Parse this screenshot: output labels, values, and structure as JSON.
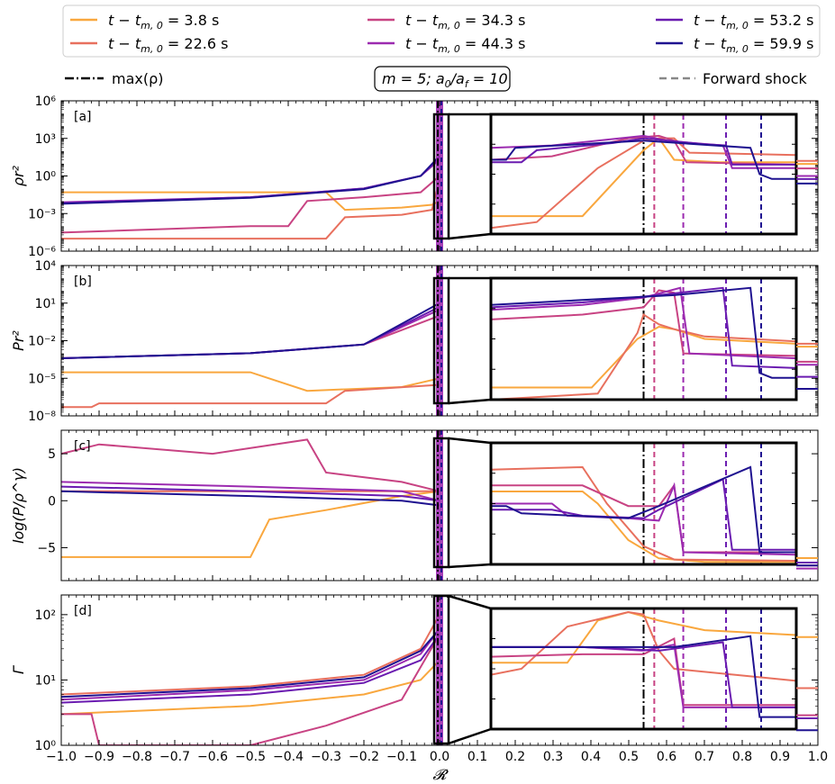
{
  "legend": {
    "entries": [
      {
        "label": "t − t",
        "sub": "m, 0",
        "val": " = 3.8 s",
        "color": "#f9a73e"
      },
      {
        "label": "t − t",
        "sub": "m, 0",
        "val": " = 22.6 s",
        "color": "#e8705e"
      },
      {
        "label": "t − t",
        "sub": "m, 0",
        "val": " = 34.3 s",
        "color": "#c84383"
      },
      {
        "label": "t − t",
        "sub": "m, 0",
        "val": " = 44.3 s",
        "color": "#9c2bb0"
      },
      {
        "label": "t − t",
        "sub": "m, 0",
        "val": " = 53.2 s",
        "color": "#6a1bb0"
      },
      {
        "label": "t − t",
        "sub": "m, 0",
        "val": " = 59.9 s",
        "color": "#1f1290"
      }
    ],
    "maxrho": "max(ρ)",
    "params": "m = 5; a₀/a_f = 10",
    "fshock": "Forward shock"
  },
  "colors": {
    "c1": "#f9a73e",
    "c2": "#e8705e",
    "c3": "#c84383",
    "c4": "#9c2bb0",
    "c5": "#6a1bb0",
    "c6": "#1f1290"
  },
  "chart_data": [
    {
      "panel": "[a]",
      "type": "line",
      "ylabel": "ρr²",
      "yscale": "log",
      "ylim": [
        1e-06,
        1000000.0
      ],
      "yticks": [
        "10⁻⁶",
        "10⁻³",
        "10⁰",
        "10³",
        "10⁶"
      ],
      "series": [
        {
          "name": "3.8 s",
          "points": [
            [
              -1,
              0.05
            ],
            [
              -0.3,
              0.05
            ],
            [
              -0.25,
              0.002
            ],
            [
              -0.1,
              0.003
            ],
            [
              -0.02,
              0.005
            ],
            [
              0,
              0.01
            ]
          ]
        },
        {
          "name": "22.6 s",
          "points": [
            [
              -1,
              1e-05
            ],
            [
              -0.3,
              1e-05
            ],
            [
              -0.25,
              0.0005
            ],
            [
              -0.1,
              0.0008
            ],
            [
              -0.02,
              0.002
            ],
            [
              0,
              0.5
            ]
          ]
        },
        {
          "name": "34.3 s",
          "points": [
            [
              -1,
              3e-05
            ],
            [
              -0.5,
              0.0001
            ],
            [
              -0.4,
              0.0001
            ],
            [
              -0.35,
              0.01
            ],
            [
              -0.2,
              0.02
            ],
            [
              -0.05,
              0.05
            ],
            [
              0,
              1
            ]
          ]
        },
        {
          "name": "44.3 s",
          "points": [
            [
              -1,
              0.008
            ],
            [
              -0.5,
              0.02
            ],
            [
              -0.2,
              0.1
            ],
            [
              -0.05,
              1
            ],
            [
              0,
              20
            ]
          ]
        },
        {
          "name": "53.2 s",
          "points": [
            [
              -1,
              0.007
            ],
            [
              -0.5,
              0.02
            ],
            [
              -0.2,
              0.1
            ],
            [
              -0.05,
              1
            ],
            [
              0,
              30
            ]
          ]
        },
        {
          "name": "59.9 s",
          "points": [
            [
              -1,
              0.006
            ],
            [
              -0.5,
              0.018
            ],
            [
              -0.2,
              0.09
            ],
            [
              -0.05,
              1
            ],
            [
              0,
              40
            ]
          ]
        }
      ]
    },
    {
      "panel": "[b]",
      "type": "line",
      "ylabel": "Pr²",
      "yscale": "log",
      "ylim": [
        1e-08,
        10000.0
      ],
      "yticks": [
        "10⁻⁸",
        "10⁻⁵",
        "10⁻²",
        "10¹",
        "10⁴"
      ],
      "series": [
        {
          "name": "3.8 s",
          "points": [
            [
              -1,
              3e-05
            ],
            [
              -0.5,
              3e-05
            ],
            [
              -0.35,
              1e-06
            ],
            [
              -0.1,
              2e-06
            ],
            [
              0,
              1e-05
            ]
          ]
        },
        {
          "name": "22.6 s",
          "points": [
            [
              -1,
              5e-08
            ],
            [
              -0.92,
              5e-08
            ],
            [
              -0.9,
              1e-07
            ],
            [
              -0.3,
              1e-07
            ],
            [
              -0.25,
              1e-06
            ],
            [
              0,
              3e-06
            ]
          ]
        },
        {
          "name": "34.3 s",
          "points": [
            [
              -1,
              0.0004
            ],
            [
              -0.5,
              0.001
            ],
            [
              -0.2,
              0.005
            ],
            [
              0,
              1
            ]
          ]
        },
        {
          "name": "44.3 s",
          "points": [
            [
              -1,
              0.0004
            ],
            [
              -0.5,
              0.001
            ],
            [
              -0.2,
              0.005
            ],
            [
              0,
              3
            ]
          ]
        },
        {
          "name": "53.2 s",
          "points": [
            [
              -1,
              0.0004
            ],
            [
              -0.5,
              0.001
            ],
            [
              -0.2,
              0.005
            ],
            [
              0,
              5
            ]
          ]
        },
        {
          "name": "59.9 s",
          "points": [
            [
              -1,
              0.0004
            ],
            [
              -0.5,
              0.001
            ],
            [
              -0.2,
              0.005
            ],
            [
              0,
              10
            ]
          ]
        }
      ]
    },
    {
      "panel": "[c]",
      "type": "line",
      "ylabel": "log(P/ρ^γ)",
      "yscale": "linear",
      "ylim": [
        -8.5,
        7.5
      ],
      "yticks": [
        "−5",
        "0",
        "5"
      ],
      "series": [
        {
          "name": "3.8 s",
          "points": [
            [
              -1,
              -6
            ],
            [
              -0.5,
              -6
            ],
            [
              -0.45,
              -2
            ],
            [
              -0.3,
              -1
            ],
            [
              -0.1,
              0.5
            ],
            [
              0,
              1
            ]
          ]
        },
        {
          "name": "22.6 s",
          "points": [
            [
              -1,
              1
            ],
            [
              -0.5,
              1
            ],
            [
              -0.1,
              1
            ],
            [
              0,
              1
            ]
          ]
        },
        {
          "name": "34.3 s",
          "points": [
            [
              -1,
              5
            ],
            [
              -0.9,
              6
            ],
            [
              -0.6,
              5
            ],
            [
              -0.35,
              6.5
            ],
            [
              -0.3,
              3
            ],
            [
              -0.1,
              2
            ],
            [
              0,
              1
            ]
          ]
        },
        {
          "name": "44.3 s",
          "points": [
            [
              -1,
              2
            ],
            [
              -0.5,
              1.5
            ],
            [
              -0.1,
              1
            ],
            [
              0,
              0
            ]
          ]
        },
        {
          "name": "53.2 s",
          "points": [
            [
              -1,
              1.5
            ],
            [
              -0.5,
              1
            ],
            [
              -0.1,
              0.5
            ],
            [
              0,
              0
            ]
          ]
        },
        {
          "name": "59.9 s",
          "points": [
            [
              -1,
              1
            ],
            [
              -0.5,
              0.5
            ],
            [
              -0.1,
              0
            ],
            [
              0,
              -0.5
            ]
          ]
        }
      ]
    },
    {
      "panel": "[d]",
      "type": "line",
      "ylabel": "Γ",
      "yscale": "log",
      "ylim": [
        1,
        200
      ],
      "yticks": [
        "10⁰",
        "10¹",
        "10²"
      ],
      "series": [
        {
          "name": "3.8 s",
          "points": [
            [
              -1,
              3
            ],
            [
              -0.5,
              4
            ],
            [
              -0.2,
              6
            ],
            [
              -0.05,
              10
            ],
            [
              0,
              20
            ]
          ]
        },
        {
          "name": "22.6 s",
          "points": [
            [
              -1,
              6
            ],
            [
              -0.5,
              8
            ],
            [
              -0.2,
              12
            ],
            [
              -0.05,
              30
            ],
            [
              0,
              100
            ]
          ]
        },
        {
          "name": "34.3 s",
          "points": [
            [
              -1,
              3
            ],
            [
              -0.92,
              3
            ],
            [
              -0.9,
              1
            ],
            [
              -0.5,
              1
            ],
            [
              -0.3,
              2
            ],
            [
              -0.1,
              5
            ],
            [
              0,
              50
            ]
          ]
        },
        {
          "name": "44.3 s",
          "points": [
            [
              -1,
              5
            ],
            [
              -0.5,
              7
            ],
            [
              -0.2,
              10
            ],
            [
              -0.05,
              25
            ],
            [
              0,
              60
            ]
          ]
        },
        {
          "name": "53.2 s",
          "points": [
            [
              -1,
              4.5
            ],
            [
              -0.5,
              6
            ],
            [
              -0.2,
              9
            ],
            [
              -0.05,
              20
            ],
            [
              0,
              50
            ]
          ]
        },
        {
          "name": "59.9 s",
          "points": [
            [
              -1,
              5.5
            ],
            [
              -0.5,
              7.5
            ],
            [
              -0.2,
              11
            ],
            [
              -0.05,
              28
            ],
            [
              0,
              60
            ]
          ]
        }
      ]
    }
  ],
  "xaxis": {
    "label": "𝓡",
    "xlim": [
      -1.0,
      1.0
    ],
    "ticks": [
      "−1.0",
      "−0.9",
      "−0.8",
      "−0.7",
      "−0.6",
      "−0.5",
      "−0.4",
      "−0.3",
      "−0.2",
      "−0.1",
      "0.0",
      "0.1",
      "0.2",
      "0.3",
      "0.4",
      "0.5",
      "0.6",
      "0.7",
      "0.8",
      "0.9",
      "1.0"
    ]
  }
}
